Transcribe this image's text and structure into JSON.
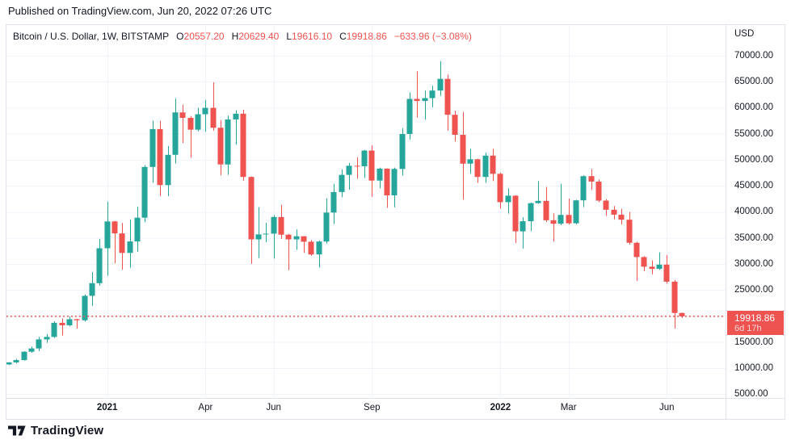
{
  "header": {
    "published": "Published on TradingView.com, Jun 20, 2022 07:26 UTC"
  },
  "legend": {
    "symbol": "Bitcoin / U.S. Dollar, 1W, BITSTAMP",
    "o_label": "O",
    "o_value": "20557.20",
    "h_label": "H",
    "h_value": "20629.40",
    "l_label": "L",
    "l_value": "19616.10",
    "c_label": "C",
    "c_value": "19918.86",
    "change": "−633.96 (−3.08%)"
  },
  "price_axis": {
    "currency": "USD",
    "labels": [
      "70000.00",
      "65000.00",
      "60000.00",
      "55000.00",
      "50000.00",
      "45000.00",
      "40000.00",
      "35000.00",
      "30000.00",
      "25000.00",
      "15000.00",
      "10000.00",
      "5000.00"
    ]
  },
  "last_price": {
    "value": "19918.86",
    "countdown": "6d 17h",
    "price": 19918.86
  },
  "footer": {
    "brand": "TradingView"
  },
  "colors": {
    "up": "#26a69a",
    "down": "#ef5350",
    "grid": "#f0f3fa",
    "border": "#e0e3eb",
    "text": "#131722",
    "last_price_bg": "#ef5350",
    "last_price_line": "#ef5350"
  },
  "chart_data": {
    "type": "candlestick",
    "title": "Bitcoin / U.S. Dollar",
    "interval": "1W",
    "exchange": "BITSTAMP",
    "ylabel": "USD",
    "grid": true,
    "y_axis": {
      "min": 5000,
      "max": 70000,
      "step": 5000,
      "label_hidden_by_price_flag": 20000
    },
    "x_ticks": [
      {
        "index": 13,
        "label": "2021",
        "bold": true
      },
      {
        "index": 26,
        "label": "Apr",
        "bold": false
      },
      {
        "index": 35,
        "label": "Jun",
        "bold": false
      },
      {
        "index": 48,
        "label": "Sep",
        "bold": false
      },
      {
        "index": 65,
        "label": "2022",
        "bold": true
      },
      {
        "index": 74,
        "label": "Mar",
        "bold": false
      },
      {
        "index": 87,
        "label": "Jun",
        "bold": false
      }
    ],
    "last_close": 19918.86,
    "candles": [
      [
        "2020-10-05",
        10670,
        11099,
        10547,
        11064
      ],
      [
        "2020-10-12",
        11064,
        11720,
        10830,
        11503
      ],
      [
        "2020-10-19",
        11503,
        13218,
        11400,
        13108
      ],
      [
        "2020-10-26",
        13108,
        14100,
        12890,
        13740
      ],
      [
        "2020-11-02",
        13740,
        15960,
        13230,
        15479
      ],
      [
        "2020-11-09",
        15479,
        16480,
        14805,
        15955
      ],
      [
        "2020-11-16",
        15955,
        18965,
        15750,
        18660
      ],
      [
        "2020-11-23",
        18660,
        19500,
        16200,
        18190
      ],
      [
        "2020-11-30",
        18190,
        19920,
        18000,
        19360
      ],
      [
        "2020-12-07",
        19360,
        19420,
        17570,
        19150
      ],
      [
        "2020-12-14",
        19150,
        24100,
        18900,
        23850
      ],
      [
        "2020-12-21",
        23850,
        28400,
        21900,
        26280
      ],
      [
        "2020-12-28",
        26280,
        34800,
        25800,
        33000
      ],
      [
        "2021-01-04",
        33000,
        41950,
        27700,
        38150
      ],
      [
        "2021-01-11",
        38150,
        38264,
        30100,
        35850
      ],
      [
        "2021-01-18",
        35850,
        37850,
        28850,
        32100
      ],
      [
        "2021-01-25",
        32100,
        38531,
        29250,
        34300
      ],
      [
        "2021-02-01",
        34300,
        40955,
        32300,
        38870
      ],
      [
        "2021-02-08",
        38870,
        48985,
        38000,
        48620
      ],
      [
        "2021-02-15",
        48620,
        57530,
        45570,
        55900
      ],
      [
        "2021-02-22",
        55900,
        57500,
        43000,
        45135
      ],
      [
        "2021-03-01",
        45135,
        52640,
        43000,
        50950
      ],
      [
        "2021-03-08",
        50950,
        61800,
        49270,
        59100
      ],
      [
        "2021-03-15",
        59100,
        60600,
        53200,
        58050
      ],
      [
        "2021-03-22",
        58050,
        58400,
        50400,
        55780
      ],
      [
        "2021-03-29",
        55780,
        60000,
        55450,
        58750
      ],
      [
        "2021-04-05",
        58750,
        61500,
        55400,
        59980
      ],
      [
        "2021-04-12",
        59980,
        64895,
        55600,
        56150
      ],
      [
        "2021-04-19",
        56150,
        57600,
        47000,
        49100
      ],
      [
        "2021-04-26",
        49100,
        58500,
        47100,
        57750
      ],
      [
        "2021-05-03",
        57750,
        59500,
        52900,
        58850
      ],
      [
        "2021-05-10",
        58850,
        59600,
        46000,
        46700
      ],
      [
        "2021-05-17",
        46700,
        46800,
        30000,
        34700
      ],
      [
        "2021-05-24",
        34700,
        40900,
        31100,
        35660
      ],
      [
        "2021-05-31",
        35660,
        37900,
        34150,
        35800
      ],
      [
        "2021-06-07",
        35800,
        39380,
        31000,
        39000
      ],
      [
        "2021-06-14",
        39000,
        41330,
        34800,
        35600
      ],
      [
        "2021-06-21",
        35600,
        35750,
        28800,
        34700
      ],
      [
        "2021-06-28",
        34700,
        36600,
        32700,
        35300
      ],
      [
        "2021-07-05",
        35300,
        35330,
        32100,
        34250
      ],
      [
        "2021-07-12",
        34250,
        34600,
        31550,
        31800
      ],
      [
        "2021-07-19",
        31800,
        34500,
        29300,
        34290
      ],
      [
        "2021-07-26",
        34290,
        42600,
        33900,
        39850
      ],
      [
        "2021-08-02",
        39850,
        45380,
        37650,
        43800
      ],
      [
        "2021-08-09",
        43800,
        48150,
        42800,
        47100
      ],
      [
        "2021-08-16",
        47100,
        49400,
        44250,
        48850
      ],
      [
        "2021-08-23",
        48850,
        50505,
        46350,
        48750
      ],
      [
        "2021-08-30",
        48750,
        51900,
        46500,
        51770
      ],
      [
        "2021-09-06",
        51770,
        52780,
        42900,
        46000
      ],
      [
        "2021-09-13",
        46000,
        48500,
        44500,
        48300
      ],
      [
        "2021-09-20",
        48300,
        48340,
        40750,
        43160
      ],
      [
        "2021-09-27",
        43160,
        48495,
        40850,
        48240
      ],
      [
        "2021-10-04",
        48240,
        56100,
        46950,
        54950
      ],
      [
        "2021-10-11",
        54950,
        62933,
        53880,
        61700
      ],
      [
        "2021-10-18",
        61700,
        67000,
        58100,
        61300
      ],
      [
        "2021-10-25",
        61300,
        63290,
        57700,
        61850
      ],
      [
        "2021-11-01",
        61850,
        64245,
        60100,
        63300
      ],
      [
        "2021-11-08",
        63300,
        68958,
        62280,
        65550
      ],
      [
        "2021-11-15",
        65550,
        66350,
        55600,
        58650
      ],
      [
        "2021-11-22",
        58650,
        59450,
        53500,
        54800
      ],
      [
        "2021-11-29",
        54800,
        59200,
        42333,
        49250
      ],
      [
        "2021-12-06",
        49250,
        52100,
        47300,
        50100
      ],
      [
        "2021-12-13",
        50100,
        50200,
        45550,
        46700
      ],
      [
        "2021-12-20",
        46700,
        51375,
        45550,
        50800
      ],
      [
        "2021-12-27",
        50800,
        52088,
        45900,
        47300
      ],
      [
        "2022-01-03",
        47300,
        47570,
        40610,
        41850
      ],
      [
        "2022-01-10",
        41850,
        44500,
        39650,
        43100
      ],
      [
        "2022-01-17",
        43100,
        43200,
        34000,
        36240
      ],
      [
        "2022-01-24",
        36240,
        38960,
        32950,
        38180
      ],
      [
        "2022-01-31",
        38180,
        41772,
        36300,
        41660
      ],
      [
        "2022-02-07",
        41660,
        45880,
        41550,
        42100
      ],
      [
        "2022-02-14",
        42100,
        44800,
        38050,
        38380
      ],
      [
        "2022-02-21",
        38380,
        39700,
        34300,
        37700
      ],
      [
        "2022-02-28",
        37700,
        45400,
        37450,
        39400
      ],
      [
        "2022-03-07",
        39400,
        42550,
        37550,
        37790
      ],
      [
        "2022-03-14",
        37790,
        42320,
        37600,
        42200
      ],
      [
        "2022-03-21",
        42200,
        47000,
        40900,
        46850
      ],
      [
        "2022-03-28",
        46850,
        48200,
        44200,
        45810
      ],
      [
        "2022-04-04",
        45810,
        46220,
        41850,
        42150
      ],
      [
        "2022-04-11",
        42150,
        42400,
        39200,
        40400
      ],
      [
        "2022-04-18",
        40400,
        41116,
        38536,
        39450
      ],
      [
        "2022-04-25",
        39450,
        40600,
        37580,
        38480
      ],
      [
        "2022-05-02",
        38480,
        39960,
        33700,
        34050
      ],
      [
        "2022-05-09",
        34050,
        34220,
        26700,
        31300
      ],
      [
        "2022-05-16",
        31300,
        31460,
        28600,
        29450
      ],
      [
        "2022-05-23",
        29450,
        30650,
        28000,
        29030
      ],
      [
        "2022-05-30",
        29030,
        32200,
        28850,
        29850
      ],
      [
        "2022-06-06",
        29850,
        31700,
        26200,
        26575
      ],
      [
        "2022-06-13",
        26575,
        26895,
        17592,
        20553
      ],
      [
        "2022-06-20",
        20557.2,
        20629.4,
        19616.1,
        19918.86
      ]
    ]
  }
}
